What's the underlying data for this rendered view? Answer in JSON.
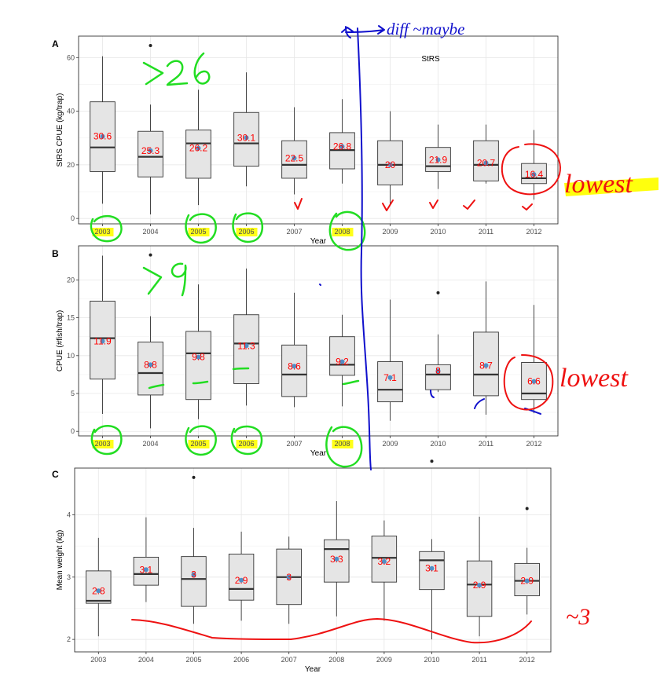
{
  "chart_data": [
    {
      "type": "box",
      "panel": "A",
      "inset_label": "StRS",
      "ylabel": "StRS CPUE (kg/trap)",
      "xlabel": "Year",
      "ylim": [
        -2,
        68
      ],
      "yticks": [
        0,
        20,
        40,
        60
      ],
      "categories": [
        "2003",
        "2004",
        "2005",
        "2006",
        "2007",
        "2008",
        "2009",
        "2010",
        "2011",
        "2012"
      ],
      "boxes": [
        {
          "min": 5.5,
          "q1": 17.5,
          "median": 26.5,
          "q3": 43.5,
          "max": 60.5,
          "mean": 30.6
        },
        {
          "min": 1.5,
          "q1": 15.5,
          "median": 23,
          "q3": 32.5,
          "max": 42.5,
          "mean": 25.3
        },
        {
          "min": 5,
          "q1": 15,
          "median": 28,
          "q3": 33,
          "max": 48,
          "mean": 26.2
        },
        {
          "min": 12,
          "q1": 19.5,
          "median": 28,
          "q3": 39.5,
          "max": 54.5,
          "mean": 30.1
        },
        {
          "min": 9,
          "q1": 15,
          "median": 20,
          "q3": 29,
          "max": 41.5,
          "mean": 22.5
        },
        {
          "min": 13,
          "q1": 18.5,
          "median": 25.5,
          "q3": 32,
          "max": 44.5,
          "mean": 26.8
        },
        {
          "min": 5,
          "q1": 12.5,
          "median": 20,
          "q3": 29,
          "max": 40,
          "mean": 20
        },
        {
          "min": 11,
          "q1": 17.5,
          "median": 19.5,
          "q3": 26.5,
          "max": 35,
          "mean": 21.9
        },
        {
          "min": 13,
          "q1": 14,
          "median": 20,
          "q3": 29,
          "max": 35,
          "mean": 20.7
        },
        {
          "min": 7,
          "q1": 13,
          "median": 15,
          "q3": 20.5,
          "max": 33,
          "mean": 16.4
        }
      ],
      "outliers": [
        {
          "category": "2004",
          "y": 64.5
        }
      ],
      "mean_labels": [
        "30.6",
        "25.3",
        "26.2",
        "30.1",
        "22.5",
        "26.8",
        "20",
        "21.9",
        "20.7",
        "16.4"
      ]
    },
    {
      "type": "box",
      "panel": "B",
      "ylabel": "CPUE (#fish/trap)",
      "xlabel": "Year",
      "ylim": [
        -0.6,
        24.5
      ],
      "yticks": [
        0,
        5,
        10,
        15,
        20
      ],
      "categories": [
        "2003",
        "2004",
        "2005",
        "2006",
        "2007",
        "2008",
        "2009",
        "2010",
        "2011",
        "2012"
      ],
      "boxes": [
        {
          "min": 2.3,
          "q1": 6.9,
          "median": 12.3,
          "q3": 17.2,
          "max": 23.2,
          "mean": 11.9
        },
        {
          "min": 0.4,
          "q1": 4.8,
          "median": 7.7,
          "q3": 11.8,
          "max": 15.2,
          "mean": 8.8
        },
        {
          "min": 1.6,
          "q1": 4.2,
          "median": 10.3,
          "q3": 13.2,
          "max": 19.4,
          "mean": 9.8
        },
        {
          "min": 3.4,
          "q1": 6.3,
          "median": 11.6,
          "q3": 15.4,
          "max": 21.5,
          "mean": 11.3
        },
        {
          "min": 3.2,
          "q1": 4.6,
          "median": 7.5,
          "q3": 11.4,
          "max": 18.3,
          "mean": 8.6
        },
        {
          "min": 3.3,
          "q1": 7.4,
          "median": 8.8,
          "q3": 12.5,
          "max": 15.4,
          "mean": 9.2
        },
        {
          "min": 1.4,
          "q1": 3.9,
          "median": 5.5,
          "q3": 9.2,
          "max": 17.4,
          "mean": 7.1
        },
        {
          "min": 5.2,
          "q1": 5.5,
          "median": 7.5,
          "q3": 8.8,
          "max": 12.8,
          "mean": 8
        },
        {
          "min": 2.2,
          "q1": 4.7,
          "median": 7.5,
          "q3": 13.1,
          "max": 19.8,
          "mean": 8.7
        },
        {
          "min": 2.4,
          "q1": 4.2,
          "median": 5,
          "q3": 9.1,
          "max": 16.7,
          "mean": 6.6
        }
      ],
      "outliers": [
        {
          "category": "2004",
          "y": 23.3
        },
        {
          "category": "2010",
          "y": 18.3
        }
      ],
      "mean_labels": [
        "11.9",
        "8.8",
        "9.8",
        "11.3",
        "8.6",
        "9.2",
        "7.1",
        "8",
        "8.7",
        "6.6"
      ]
    },
    {
      "type": "box",
      "panel": "C",
      "ylabel": "Mean weight (kg)",
      "xlabel": "Year",
      "ylim": [
        1.8,
        4.75
      ],
      "yticks": [
        2,
        3,
        4
      ],
      "categories": [
        "2003",
        "2004",
        "2005",
        "2006",
        "2007",
        "2008",
        "2009",
        "2010",
        "2011",
        "2012"
      ],
      "boxes": [
        {
          "min": 2.05,
          "q1": 2.58,
          "median": 2.62,
          "q3": 3.1,
          "max": 3.63,
          "mean": 2.78
        },
        {
          "min": 2.6,
          "q1": 2.87,
          "median": 3.05,
          "q3": 3.32,
          "max": 3.96,
          "mean": 3.12
        },
        {
          "min": 2.25,
          "q1": 2.53,
          "median": 2.97,
          "q3": 3.33,
          "max": 3.79,
          "mean": 3.04
        },
        {
          "min": 2.3,
          "q1": 2.63,
          "median": 2.81,
          "q3": 3.37,
          "max": 3.73,
          "mean": 2.95
        },
        {
          "min": 2.25,
          "q1": 2.56,
          "median": 3,
          "q3": 3.45,
          "max": 3.65,
          "mean": 3
        },
        {
          "min": 2.37,
          "q1": 2.92,
          "median": 3.45,
          "q3": 3.6,
          "max": 4.22,
          "mean": 3.29
        },
        {
          "min": 2.3,
          "q1": 2.92,
          "median": 3.31,
          "q3": 3.66,
          "max": 3.91,
          "mean": 3.25
        },
        {
          "min": 2.0,
          "q1": 2.8,
          "median": 3.27,
          "q3": 3.41,
          "max": 3.61,
          "mean": 3.14
        },
        {
          "min": 2.05,
          "q1": 2.37,
          "median": 2.88,
          "q3": 3.26,
          "max": 3.97,
          "mean": 2.87
        },
        {
          "min": 2.4,
          "q1": 2.7,
          "median": 2.94,
          "q3": 3.22,
          "max": 3.47,
          "mean": 2.94
        }
      ],
      "outliers": [
        {
          "category": "2005",
          "y": 4.6
        },
        {
          "category": "2010",
          "y": 4.86
        },
        {
          "category": "2012",
          "y": 4.1
        }
      ],
      "mean_labels": [
        "2.8",
        "3.1",
        "3",
        "2.9",
        "3",
        "3.3",
        "3.2",
        "3.1",
        "2.9",
        "2.9"
      ]
    }
  ],
  "annotations": {
    "top_note": "diff ~maybe",
    "a_count": ">26",
    "b_count": ">9",
    "a_lowest": "lowest",
    "b_lowest": "lowest",
    "c_note": "~3"
  },
  "colors": {
    "box_fill": "#e5e5e5",
    "mean_dot": "#4f8fc7",
    "value_label": "#ff0000",
    "highlight": "#ffff00",
    "ink_green": "#22dd22",
    "ink_blue": "#1010cc",
    "ink_red": "#ee1111"
  }
}
